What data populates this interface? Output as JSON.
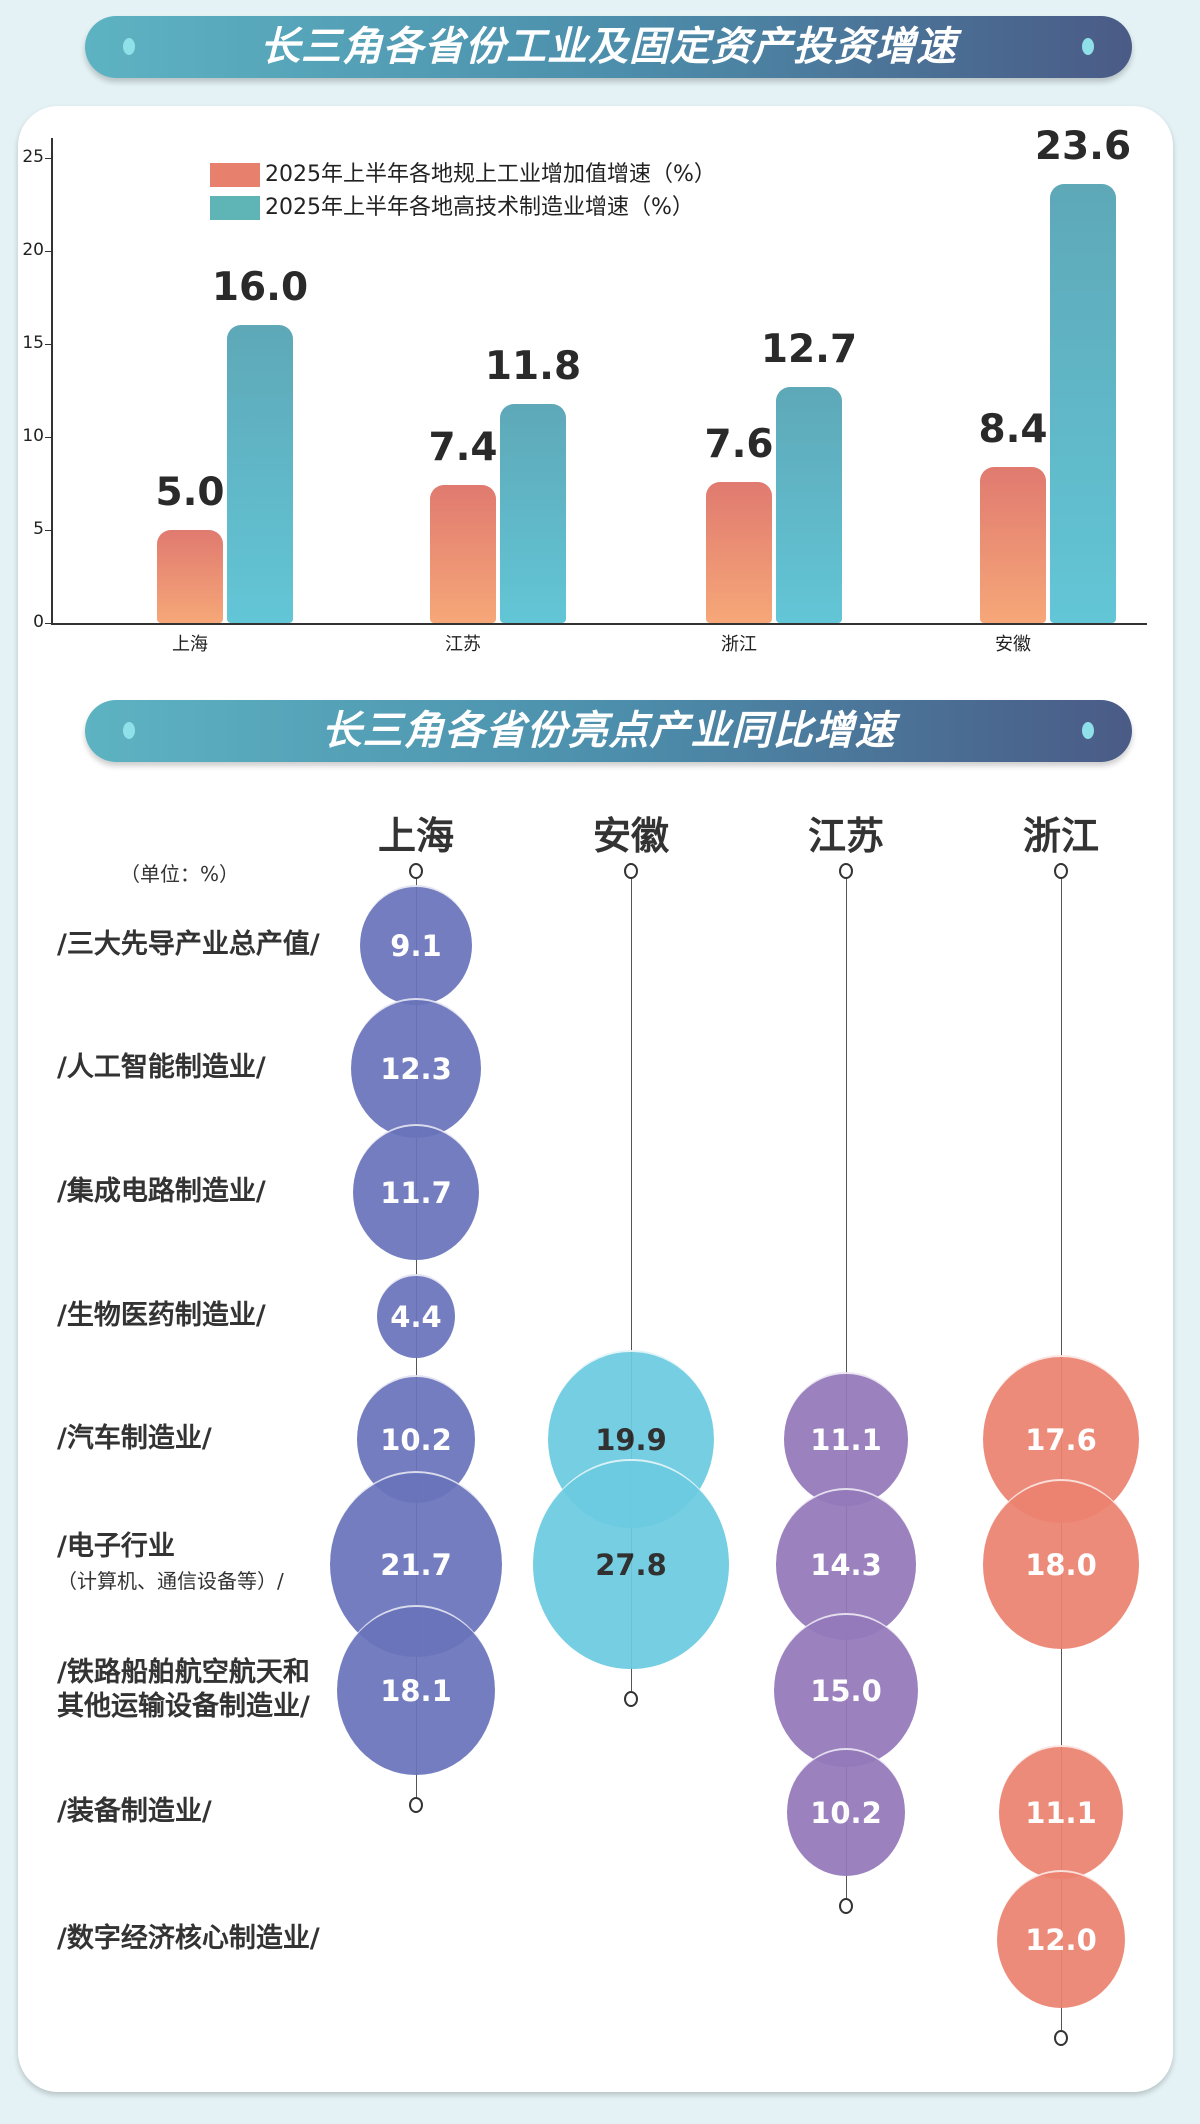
{
  "title1": "长三角各省份工业及固定资产投资增速",
  "title2": "长三角各省份亮点产业同比增速",
  "chart_data": [
    {
      "type": "bar",
      "categories": [
        "上海",
        "江苏",
        "浙江",
        "安徽"
      ],
      "series": [
        {
          "name": "2025年上半年各地规上工业增加值增速（%）",
          "values": [
            5.0,
            7.4,
            7.6,
            8.4
          ],
          "color": "#e8806e"
        },
        {
          "name": "2025年上半年各地高技术制造业增速（%）",
          "values": [
            16.0,
            11.8,
            12.7,
            23.6
          ],
          "color": "#5fb5c5"
        }
      ],
      "value_labels": [
        [
          "5.0",
          "7.4",
          "7.6",
          "8.4"
        ],
        [
          "16.0",
          "11.8",
          "12.7",
          "23.6"
        ]
      ],
      "yticks": [
        "0",
        "5",
        "10",
        "15",
        "20",
        "25"
      ],
      "ylim": [
        0,
        25
      ],
      "legend": "top-left"
    },
    {
      "type": "scatter",
      "unit_label": "（单位：%）",
      "columns": [
        {
          "name": "上海",
          "color": "#6a74bb",
          "text": "#ffffff"
        },
        {
          "name": "安徽",
          "color": "#6ccbe0",
          "text": "#222222"
        },
        {
          "name": "江苏",
          "color": "#9479bb",
          "text": "#ffffff"
        },
        {
          "name": "浙江",
          "color": "#ec8371",
          "text": "#ffffff"
        }
      ],
      "rows": [
        {
          "label": "/三大先导产业总产值/",
          "values": [
            "9.1",
            null,
            null,
            null
          ]
        },
        {
          "label": "/人工智能制造业/",
          "values": [
            "12.3",
            null,
            null,
            null
          ]
        },
        {
          "label": "/集成电路制造业/",
          "values": [
            "11.7",
            null,
            null,
            null
          ]
        },
        {
          "label": "/生物医药制造业/",
          "values": [
            "4.4",
            null,
            null,
            null
          ]
        },
        {
          "label": "/汽车制造业/",
          "values": [
            "10.2",
            "19.9",
            "11.1",
            "17.6"
          ]
        },
        {
          "label": "/电子行业",
          "sublabel": "（计算机、通信设备等）/",
          "values": [
            "21.7",
            "27.8",
            "14.3",
            "18.0"
          ]
        },
        {
          "label": "/铁路船舶航空航天和",
          "sublabel": "其他运输设备制造业/",
          "values": [
            "18.1",
            null,
            "15.0",
            null
          ]
        },
        {
          "label": "/装备制造业/",
          "values": [
            null,
            null,
            "10.2",
            "11.1"
          ]
        },
        {
          "label": "/数字经济核心制造业/",
          "values": [
            null,
            null,
            null,
            "12.0"
          ]
        }
      ]
    }
  ]
}
